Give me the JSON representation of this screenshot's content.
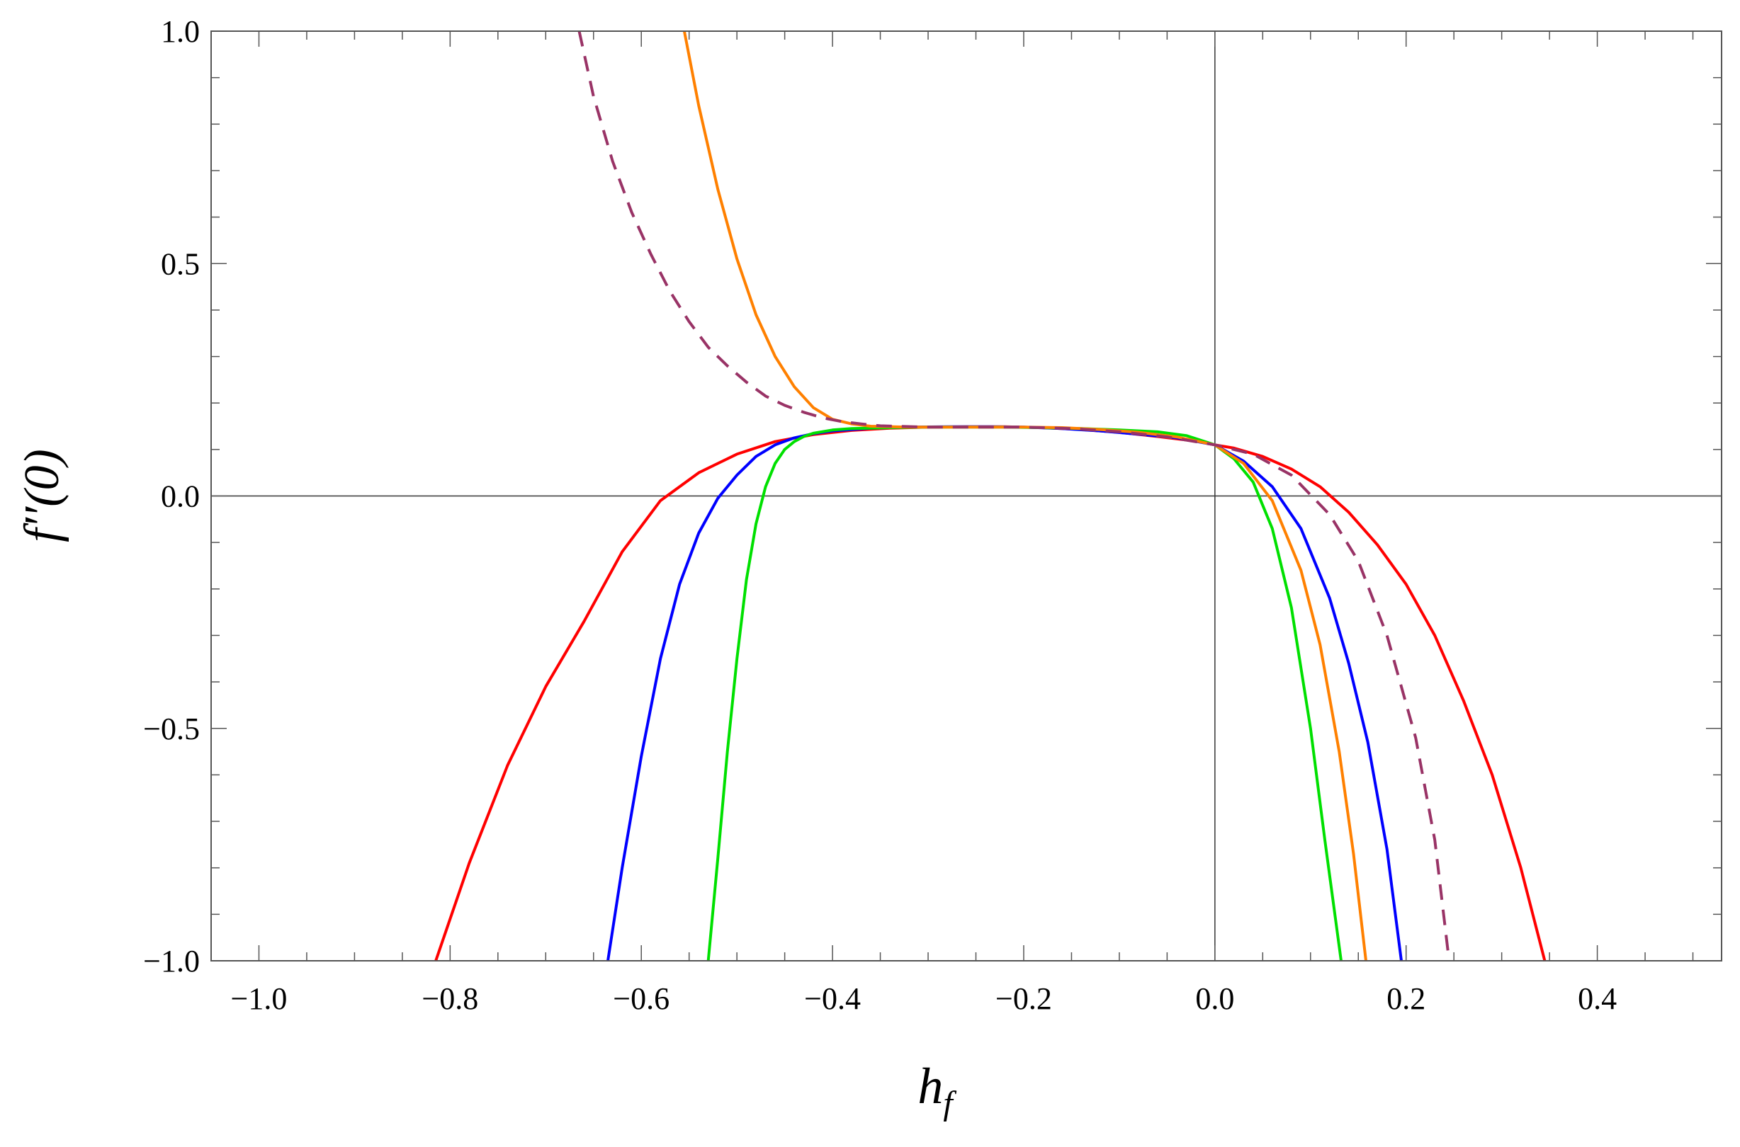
{
  "chart_data": {
    "type": "line",
    "title": "",
    "xlabel": "h",
    "xlabel_sub": "f",
    "ylabel": "f′′(0)",
    "xlim": [
      -1.05,
      0.53
    ],
    "ylim": [
      -1.0,
      1.0
    ],
    "x_ticks": [
      -1.0,
      -0.8,
      -0.6,
      -0.4,
      -0.2,
      0.0,
      0.2,
      0.4
    ],
    "x_tick_labels": [
      "−1.0",
      "−0.8",
      "−0.6",
      "−0.4",
      "−0.2",
      "0.0",
      "0.2",
      "0.4"
    ],
    "y_ticks": [
      -1.0,
      -0.5,
      0.0,
      0.5,
      1.0
    ],
    "y_tick_labels": [
      "−1.0",
      "−0.5",
      "0.0",
      "0.5",
      "1.0"
    ],
    "grid": false,
    "legend": "none",
    "series": [
      {
        "color": "#ff0000",
        "style": "solid",
        "x": [
          -0.815,
          -0.78,
          -0.74,
          -0.7,
          -0.66,
          -0.62,
          -0.58,
          -0.54,
          -0.5,
          -0.46,
          -0.42,
          -0.38,
          -0.34,
          -0.3,
          -0.26,
          -0.22,
          -0.18,
          -0.14,
          -0.1,
          -0.06,
          -0.02,
          0.0,
          0.02,
          0.05,
          0.08,
          0.11,
          0.14,
          0.17,
          0.2,
          0.23,
          0.26,
          0.29,
          0.32,
          0.345
        ],
        "y": [
          -1.0,
          -0.79,
          -0.58,
          -0.41,
          -0.27,
          -0.12,
          -0.01,
          0.05,
          0.09,
          0.117,
          0.132,
          0.141,
          0.146,
          0.148,
          0.149,
          0.149,
          0.147,
          0.143,
          0.137,
          0.128,
          0.118,
          0.11,
          0.103,
          0.085,
          0.058,
          0.02,
          -0.035,
          -0.105,
          -0.19,
          -0.3,
          -0.44,
          -0.6,
          -0.8,
          -1.0
        ]
      },
      {
        "color": "#0000ff",
        "style": "solid",
        "x": [
          -0.635,
          -0.62,
          -0.6,
          -0.58,
          -0.56,
          -0.54,
          -0.52,
          -0.5,
          -0.48,
          -0.46,
          -0.44,
          -0.42,
          -0.4,
          -0.36,
          -0.32,
          -0.28,
          -0.24,
          -0.2,
          -0.16,
          -0.12,
          -0.08,
          -0.04,
          0.0,
          0.03,
          0.06,
          0.09,
          0.12,
          0.14,
          0.16,
          0.18,
          0.195
        ],
        "y": [
          -1.0,
          -0.8,
          -0.56,
          -0.35,
          -0.19,
          -0.08,
          -0.005,
          0.045,
          0.085,
          0.11,
          0.125,
          0.134,
          0.14,
          0.146,
          0.148,
          0.149,
          0.149,
          0.148,
          0.145,
          0.14,
          0.133,
          0.125,
          0.11,
          0.075,
          0.02,
          -0.07,
          -0.22,
          -0.36,
          -0.53,
          -0.76,
          -1.0
        ]
      },
      {
        "color": "#00e000",
        "style": "solid",
        "x": [
          -0.53,
          -0.52,
          -0.51,
          -0.5,
          -0.49,
          -0.48,
          -0.47,
          -0.46,
          -0.45,
          -0.44,
          -0.43,
          -0.42,
          -0.4,
          -0.38,
          -0.34,
          -0.3,
          -0.26,
          -0.22,
          -0.18,
          -0.14,
          -0.1,
          -0.06,
          -0.03,
          0.0,
          0.02,
          0.04,
          0.06,
          0.08,
          0.1,
          0.115,
          0.132
        ],
        "y": [
          -1.0,
          -0.78,
          -0.55,
          -0.35,
          -0.18,
          -0.06,
          0.02,
          0.07,
          0.1,
          0.117,
          0.128,
          0.135,
          0.142,
          0.145,
          0.147,
          0.148,
          0.148,
          0.148,
          0.147,
          0.145,
          0.142,
          0.138,
          0.13,
          0.11,
          0.08,
          0.03,
          -0.07,
          -0.24,
          -0.5,
          -0.74,
          -1.0
        ]
      },
      {
        "color": "#ff8000",
        "style": "solid",
        "x": [
          -0.555,
          -0.54,
          -0.52,
          -0.5,
          -0.48,
          -0.46,
          -0.44,
          -0.42,
          -0.4,
          -0.38,
          -0.36,
          -0.32,
          -0.28,
          -0.24,
          -0.2,
          -0.16,
          -0.12,
          -0.08,
          -0.04,
          0.0,
          0.03,
          0.06,
          0.09,
          0.11,
          0.13,
          0.145,
          0.158
        ],
        "y": [
          1.0,
          0.84,
          0.66,
          0.51,
          0.39,
          0.3,
          0.235,
          0.19,
          0.165,
          0.155,
          0.15,
          0.148,
          0.148,
          0.148,
          0.148,
          0.147,
          0.143,
          0.137,
          0.127,
          0.11,
          0.07,
          -0.01,
          -0.16,
          -0.32,
          -0.55,
          -0.77,
          -1.0
        ]
      },
      {
        "color": "#993366",
        "style": "dashed",
        "x": [
          -0.665,
          -0.65,
          -0.63,
          -0.61,
          -0.59,
          -0.57,
          -0.55,
          -0.53,
          -0.51,
          -0.49,
          -0.47,
          -0.45,
          -0.43,
          -0.41,
          -0.39,
          -0.37,
          -0.35,
          -0.3,
          -0.25,
          -0.2,
          -0.15,
          -0.1,
          -0.05,
          0.0,
          0.04,
          0.08,
          0.12,
          0.15,
          0.18,
          0.21,
          0.23,
          0.245
        ],
        "y": [
          1.0,
          0.86,
          0.72,
          0.61,
          0.52,
          0.44,
          0.375,
          0.32,
          0.28,
          0.245,
          0.215,
          0.195,
          0.18,
          0.168,
          0.16,
          0.155,
          0.151,
          0.148,
          0.148,
          0.148,
          0.145,
          0.138,
          0.127,
          0.11,
          0.09,
          0.045,
          -0.04,
          -0.14,
          -0.3,
          -0.52,
          -0.74,
          -1.0
        ]
      }
    ]
  }
}
